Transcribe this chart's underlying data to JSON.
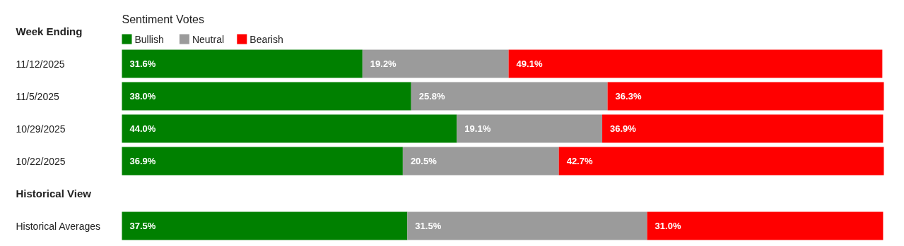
{
  "chart_data": {
    "type": "bar",
    "orientation": "horizontal",
    "stacked": true,
    "title": "Sentiment Votes",
    "categories": [
      "11/12/2025",
      "11/5/2025",
      "10/29/2025",
      "10/22/2025",
      null,
      "Historical Averages"
    ],
    "annotations": [
      "Week Ending",
      "Historical View"
    ],
    "series": [
      {
        "name": "Bullish",
        "color": "#008000",
        "values": [
          31.6,
          38.0,
          44.0,
          36.9,
          null,
          37.5
        ],
        "value_labels": [
          "31.6%",
          "38.0%",
          "44.0%",
          "36.9%",
          null,
          "37.5%"
        ]
      },
      {
        "name": "Neutral",
        "color": "#9b9b9b",
        "values": [
          19.2,
          25.8,
          19.1,
          20.5,
          null,
          31.5
        ],
        "value_labels": [
          "19.2%",
          "25.8%",
          "19.1%",
          "20.5%",
          null,
          "31.5%"
        ]
      },
      {
        "name": "Bearish",
        "color": "#ff0000",
        "values": [
          49.1,
          36.3,
          36.9,
          42.7,
          null,
          31.0
        ],
        "value_labels": [
          "49.1%",
          "36.3%",
          "36.9%",
          "42.7%",
          null,
          "31.0%"
        ]
      }
    ],
    "legend": "top left"
  }
}
